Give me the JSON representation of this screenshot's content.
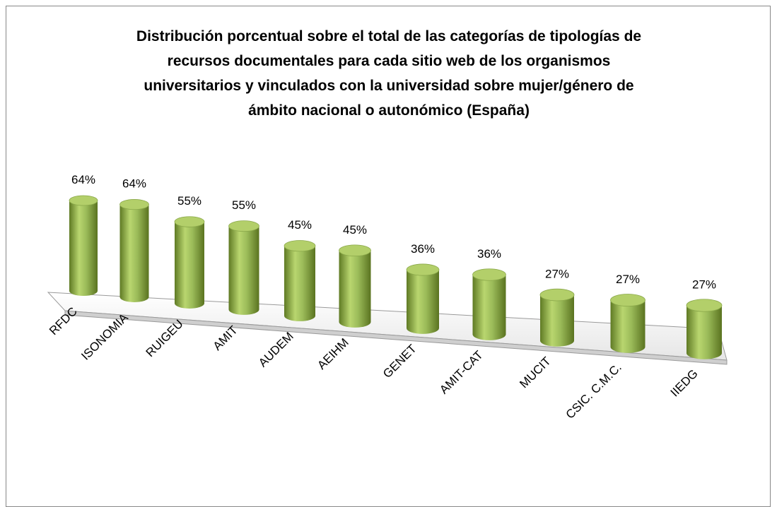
{
  "chart_data": {
    "type": "bar",
    "title": "Distribución porcentual sobre el total de las categorías de tipologías de recursos documentales para cada sitio web de los organismos universitarios y vinculados con la universidad sobre mujer/género de ámbito nacional o autonómico (España)",
    "categories": [
      "RFDC",
      "ISONOMIA",
      "RUIGEU",
      "AMIT",
      "AUDEM",
      "AEIHM",
      "GENET",
      "AMIT-CAT",
      "MUCIT",
      "CSIC. C.M.C.",
      "IIEDG"
    ],
    "values": [
      64,
      64,
      55,
      55,
      45,
      45,
      36,
      36,
      27,
      27,
      27
    ],
    "value_labels": [
      "64%",
      "64%",
      "55%",
      "55%",
      "45%",
      "45%",
      "36%",
      "36%",
      "27%",
      "27%",
      "27%"
    ],
    "color": "#9bbb59"
  }
}
